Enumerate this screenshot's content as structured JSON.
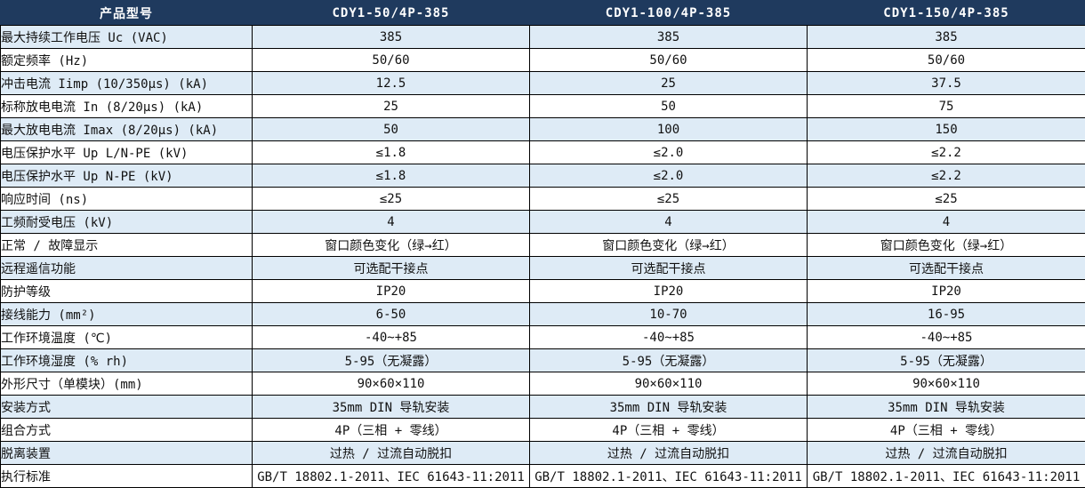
{
  "table": {
    "header": {
      "label_column_title": "产品型号",
      "models": [
        "CDY1-50/4P-385",
        "CDY1-100/4P-385",
        "CDY1-150/4P-385"
      ]
    },
    "rows": [
      {
        "label": "最大持续工作电压 Uc (VAC)",
        "values": [
          "385",
          "385",
          "385"
        ]
      },
      {
        "label": "额定频率 (Hz)",
        "values": [
          "50/60",
          "50/60",
          "50/60"
        ]
      },
      {
        "label": "冲击电流 Iimp (10/350μs) (kA)",
        "values": [
          "12.5",
          "25",
          "37.5"
        ]
      },
      {
        "label": "标称放电电流 In (8/20μs) (kA)",
        "values": [
          "25",
          "50",
          "75"
        ]
      },
      {
        "label": "最大放电电流 Imax (8/20μs) (kA)",
        "values": [
          "50",
          "100",
          "150"
        ]
      },
      {
        "label": "电压保护水平 Up L/N-PE (kV)",
        "values": [
          "≤1.8",
          "≤2.0",
          "≤2.2"
        ]
      },
      {
        "label": "电压保护水平 Up N-PE (kV)",
        "values": [
          "≤1.8",
          "≤2.0",
          "≤2.2"
        ]
      },
      {
        "label": "响应时间 (ns)",
        "values": [
          "≤25",
          "≤25",
          "≤25"
        ]
      },
      {
        "label": "工频耐受电压 (kV)",
        "values": [
          "4",
          "4",
          "4"
        ]
      },
      {
        "label": "正常 / 故障显示",
        "values": [
          "窗口颜色变化（绿→红）",
          "窗口颜色变化（绿→红）",
          "窗口颜色变化（绿→红）"
        ]
      },
      {
        "label": "远程遥信功能",
        "values": [
          "可选配干接点",
          "可选配干接点",
          "可选配干接点"
        ]
      },
      {
        "label": "防护等级",
        "values": [
          "IP20",
          "IP20",
          "IP20"
        ]
      },
      {
        "label": "接线能力 (mm²)",
        "values": [
          "6-50",
          "10-70",
          "16-95"
        ]
      },
      {
        "label": "工作环境温度 (℃)",
        "values": [
          "-40~+85",
          "-40~+85",
          "-40~+85"
        ]
      },
      {
        "label": "工作环境湿度 (% rh)",
        "values": [
          "5-95（无凝露）",
          "5-95（无凝露）",
          "5-95（无凝露）"
        ]
      },
      {
        "label": "外形尺寸（单模块）(mm)",
        "values": [
          "90×60×110",
          "90×60×110",
          "90×60×110"
        ]
      },
      {
        "label": "安装方式",
        "values": [
          "35mm DIN 导轨安装",
          "35mm DIN 导轨安装",
          "35mm DIN 导轨安装"
        ]
      },
      {
        "label": "组合方式",
        "values": [
          "4P（三相 + 零线）",
          "4P（三相 + 零线）",
          "4P（三相 + 零线）"
        ]
      },
      {
        "label": "脱离装置",
        "values": [
          "过热 / 过流自动脱扣",
          "过热 / 过流自动脱扣",
          "过热 / 过流自动脱扣"
        ]
      },
      {
        "label": "执行标准",
        "values": [
          "GB/T 18802.1-2011、IEC 61643-11:2011",
          "GB/T 18802.1-2011、IEC 61643-11:2011",
          "GB/T 18802.1-2011、IEC 61643-11:2011"
        ]
      }
    ],
    "colors": {
      "header_bg": "#1F3A5E",
      "header_text": "#FFFFFF",
      "row_alt_bg": "#DEEBF6",
      "row_bg": "#FFFFFF",
      "border": "#000000",
      "text": "#111111"
    }
  }
}
